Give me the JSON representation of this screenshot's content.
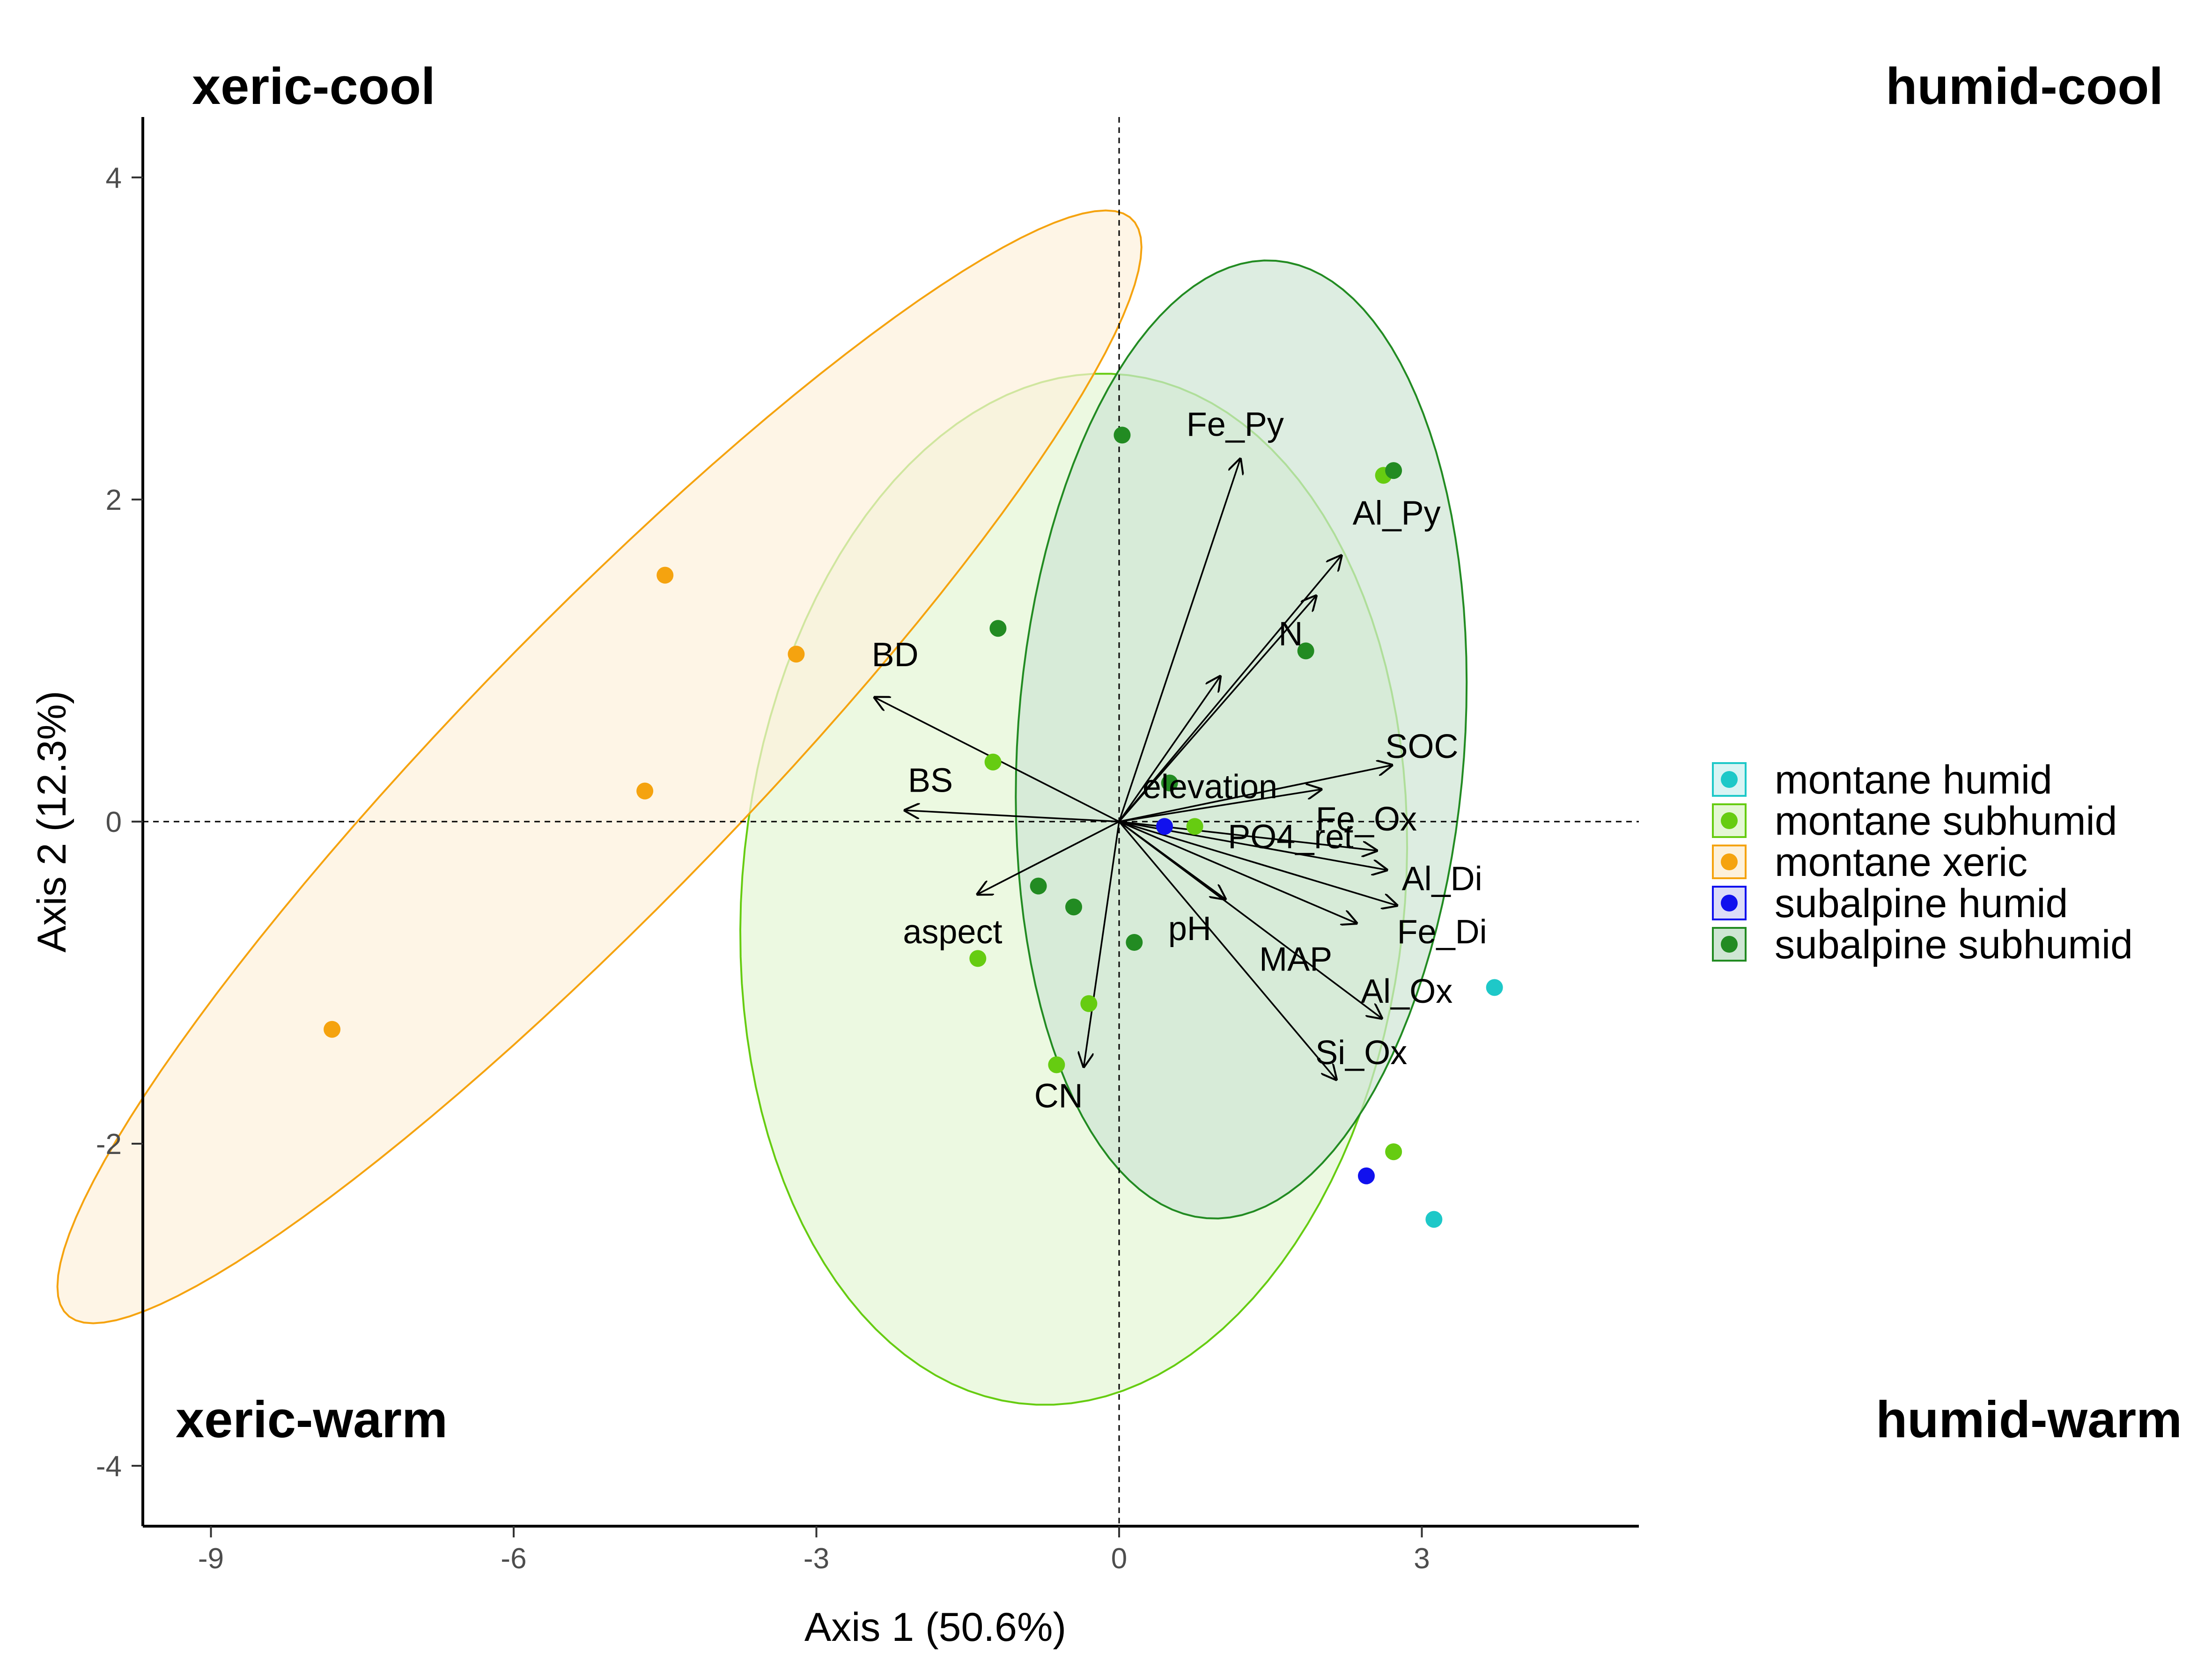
{
  "chart_data": {
    "type": "scatter",
    "subtype": "PCA biplot",
    "xlabel": "Axis 1 (50.6%)",
    "ylabel": "Axis 2 (12.3%)",
    "xlim": [
      -9.7,
      5.2
    ],
    "ylim": [
      -4.4,
      4.4
    ],
    "x_ticks": [
      -9,
      -6,
      -3,
      0,
      3
    ],
    "y_ticks": [
      -4,
      -2,
      0,
      2,
      4
    ],
    "reference_lines": {
      "x": 0,
      "y": 0,
      "style": "dashed"
    },
    "grid": false,
    "legend_position": "right",
    "quadrant_labels": {
      "top_left": "xeric-cool",
      "top_right": "humid-cool",
      "bottom_left": "xeric-warm",
      "bottom_right": "humid-warm"
    },
    "series": [
      {
        "name": "montane humid",
        "color": "#1ec8c8",
        "fill": "#d9f4f4",
        "points": [
          [
            3.72,
            -1.03
          ],
          [
            3.12,
            -2.47
          ]
        ]
      },
      {
        "name": "montane subhumid",
        "color": "#66cc11",
        "fill": "#e4f7d4",
        "points": [
          [
            -1.25,
            0.37
          ],
          [
            -1.4,
            -0.85
          ],
          [
            -0.3,
            -1.13
          ],
          [
            -0.62,
            -1.51
          ],
          [
            0.75,
            -0.03
          ],
          [
            2.62,
            2.15
          ],
          [
            2.72,
            -2.05
          ]
        ],
        "ellipse": {
          "cx": -0.45,
          "cy": -0.42,
          "rx": 3.4,
          "ry": 3.1,
          "angle": 35,
          "visible_fill_opacity": 0.55
        }
      },
      {
        "name": "montane xeric",
        "color": "#f5a30f",
        "fill": "#fdf1db",
        "points": [
          [
            -4.5,
            1.53
          ],
          [
            -3.2,
            1.04
          ],
          [
            -4.7,
            0.19
          ],
          [
            -7.8,
            -1.29
          ]
        ],
        "ellipse": {
          "cx": -5.15,
          "cy": 0.34,
          "rx": 6.3,
          "ry": 1.05,
          "angle": 32
        }
      },
      {
        "name": "subalpine humid",
        "color": "#1111ee",
        "fill": "#dcdcf8",
        "points": [
          [
            0.45,
            -0.03
          ],
          [
            2.45,
            -2.2
          ]
        ]
      },
      {
        "name": "subalpine subhumid",
        "color": "#228b22",
        "fill": "#cfe6d4",
        "points": [
          [
            0.03,
            2.4
          ],
          [
            2.72,
            2.18
          ],
          [
            -1.2,
            1.2
          ],
          [
            1.85,
            1.06
          ],
          [
            0.5,
            0.24
          ],
          [
            -0.8,
            -0.4
          ],
          [
            -0.45,
            -0.53
          ],
          [
            0.15,
            -0.75
          ]
        ],
        "ellipse": {
          "cx": 1.21,
          "cy": 0.51,
          "rx": 3.0,
          "ry": 2.2,
          "angle": 79
        }
      }
    ],
    "loadings": [
      {
        "label": "Fe_Py",
        "x": 1.2,
        "y": 2.25
      },
      {
        "label": "Al_Py",
        "x": 2.2,
        "y": 1.65
      },
      {
        "label": "N",
        "x": 1.95,
        "y": 1.4
      },
      {
        "label": "elevation",
        "x": 1.0,
        "y": 0.9
      },
      {
        "label": "BD",
        "x": -2.42,
        "y": 0.77
      },
      {
        "label": "SOC",
        "x": 2.7,
        "y": 0.35
      },
      {
        "label": "Fe_Ox",
        "x": 2.0,
        "y": 0.2
      },
      {
        "label": "BS",
        "x": -2.12,
        "y": 0.07
      },
      {
        "label": "PO4_ret",
        "x": 2.55,
        "y": -0.18
      },
      {
        "label": "Al_Di",
        "x": 2.65,
        "y": -0.3
      },
      {
        "label": "pH",
        "x": 1.05,
        "y": -0.48
      },
      {
        "label": "Fe_Di",
        "x": 2.75,
        "y": -0.52
      },
      {
        "label": "MAP",
        "x": 2.35,
        "y": -0.63
      },
      {
        "label": "aspect",
        "x": -1.4,
        "y": -0.45
      },
      {
        "label": "Al_Ox",
        "x": 2.6,
        "y": -1.22
      },
      {
        "label": "Si_Ox",
        "x": 2.15,
        "y": -1.6
      },
      {
        "label": "CN",
        "x": -0.35,
        "y": -1.52
      }
    ]
  }
}
